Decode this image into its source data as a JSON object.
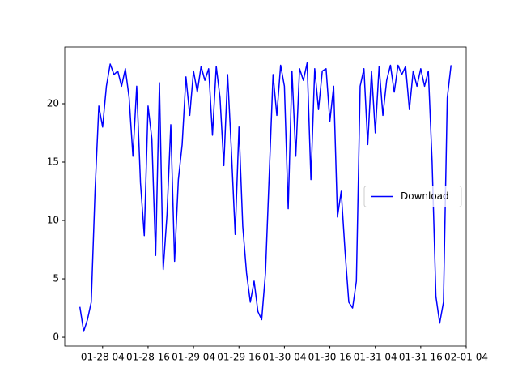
{
  "chart_data": {
    "type": "line",
    "x": [
      "01-27 22",
      "01-27 23",
      "01-28 00",
      "01-28 01",
      "01-28 02",
      "01-28 03",
      "01-28 04",
      "01-28 05",
      "01-28 06",
      "01-28 07",
      "01-28 08",
      "01-28 09",
      "01-28 10",
      "01-28 11",
      "01-28 12",
      "01-28 13",
      "01-28 14",
      "01-28 15",
      "01-28 16",
      "01-28 17",
      "01-28 18",
      "01-28 19",
      "01-28 20",
      "01-28 21",
      "01-28 22",
      "01-28 23",
      "01-29 00",
      "01-29 01",
      "01-29 02",
      "01-29 03",
      "01-29 04",
      "01-29 05",
      "01-29 06",
      "01-29 07",
      "01-29 08",
      "01-29 09",
      "01-29 10",
      "01-29 11",
      "01-29 12",
      "01-29 13",
      "01-29 14",
      "01-29 15",
      "01-29 16",
      "01-29 17",
      "01-29 18",
      "01-29 19",
      "01-29 20",
      "01-29 21",
      "01-29 22",
      "01-29 23",
      "01-30 00",
      "01-30 01",
      "01-30 02",
      "01-30 03",
      "01-30 04",
      "01-30 05",
      "01-30 06",
      "01-30 07",
      "01-30 08",
      "01-30 09",
      "01-30 10",
      "01-30 11",
      "01-30 12",
      "01-30 13",
      "01-30 14",
      "01-30 15",
      "01-30 16",
      "01-30 17",
      "01-30 18",
      "01-30 19",
      "01-30 20",
      "01-30 21",
      "01-30 22",
      "01-30 23",
      "01-31 00",
      "01-31 01",
      "01-31 02",
      "01-31 03",
      "01-31 04",
      "01-31 05",
      "01-31 06",
      "01-31 07",
      "01-31 08",
      "01-31 09",
      "01-31 10",
      "01-31 11",
      "01-31 12",
      "01-31 13",
      "01-31 14",
      "01-31 15",
      "01-31 16",
      "01-31 17",
      "01-31 18",
      "01-31 19",
      "01-31 20",
      "01-31 21",
      "01-31 22",
      "01-31 23",
      "02-01 00"
    ],
    "series": [
      {
        "name": "Download",
        "color": "#0000ff",
        "values": [
          2.6,
          0.5,
          1.5,
          3.0,
          12.5,
          19.8,
          18.0,
          21.5,
          23.4,
          22.5,
          22.8,
          21.5,
          23.0,
          20.5,
          15.5,
          21.5,
          13.2,
          8.7,
          19.8,
          17.0,
          7.0,
          21.8,
          5.8,
          10.5,
          18.2,
          6.5,
          13.5,
          16.5,
          22.3,
          19.0,
          22.8,
          21.0,
          23.2,
          22.0,
          23.0,
          17.3,
          23.2,
          20.5,
          14.7,
          22.5,
          16.0,
          8.8,
          18.0,
          9.5,
          5.5,
          3.0,
          4.8,
          2.2,
          1.5,
          5.5,
          14.0,
          22.5,
          19.0,
          23.3,
          21.5,
          11.0,
          22.8,
          15.5,
          23.0,
          22.0,
          23.5,
          13.5,
          23.0,
          19.5,
          22.8,
          23.0,
          18.5,
          21.5,
          10.3,
          12.5,
          7.4,
          3.0,
          2.5,
          4.8,
          21.5,
          23.0,
          16.5,
          22.8,
          17.5,
          23.2,
          19.0,
          22.0,
          23.3,
          21.0,
          23.3,
          22.5,
          23.2,
          19.5,
          22.8,
          21.5,
          23.0,
          21.5,
          22.8,
          15.0,
          3.5,
          1.2,
          3.0,
          20.5,
          23.3
        ]
      }
    ],
    "xlim": [
      "01-27 18",
      "02-01 04"
    ],
    "xticks": [
      "01-28 04",
      "01-28 16",
      "01-29 04",
      "01-29 16",
      "01-30 04",
      "01-30 16",
      "01-31 04",
      "01-31 16",
      "02-01 04"
    ],
    "ylim": [
      -0.76,
      24.86
    ],
    "yticks": [
      0,
      5,
      10,
      15,
      20
    ],
    "legend": "center right"
  }
}
